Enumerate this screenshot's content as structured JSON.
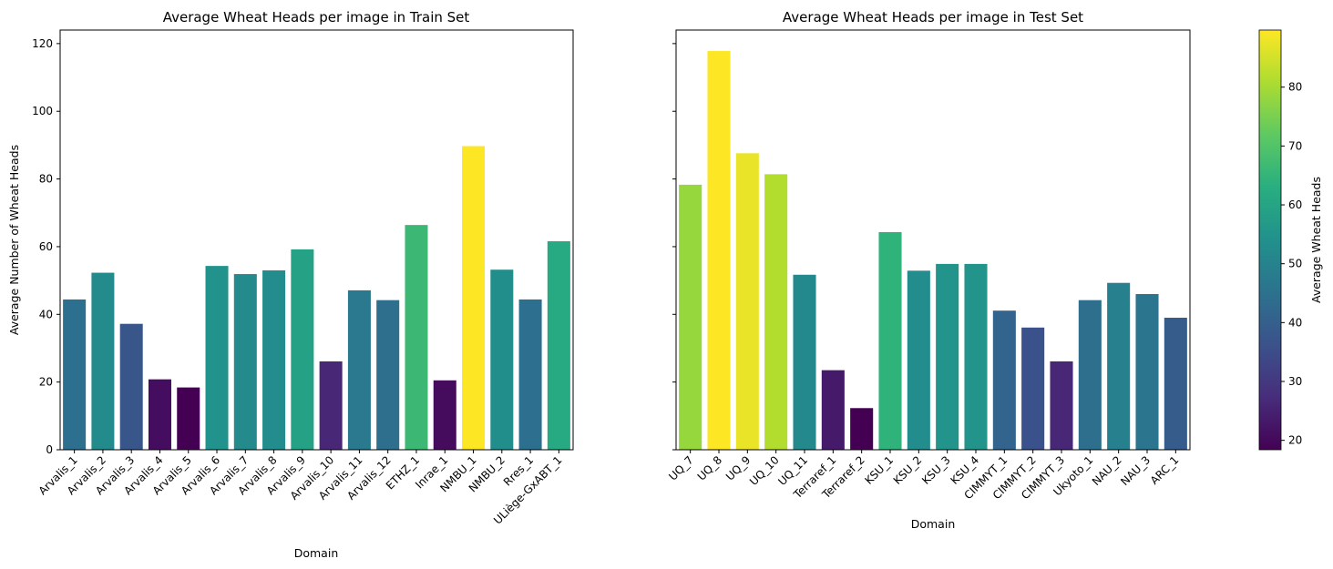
{
  "chart_data": [
    {
      "type": "bar",
      "title": "Average Wheat Heads per image in Train Set",
      "xlabel": "Domain",
      "ylabel": "Average Number of Wheat Heads",
      "ylim": [
        0,
        124
      ],
      "yticks": [
        0,
        20,
        40,
        60,
        80,
        100,
        120
      ],
      "categories": [
        "Arvalis_1",
        "Arvalis_2",
        "Arvalis_3",
        "Arvalis_4",
        "Arvalis_5",
        "Arvalis_6",
        "Arvalis_7",
        "Arvalis_8",
        "Arvalis_9",
        "Arvalis_10",
        "Arvalis_11",
        "Arvalis_12",
        "ETHZ_1",
        "Inrae_1",
        "NMBU_1",
        "NMBU_2",
        "Rres_1",
        "ULiège-GxABT_1"
      ],
      "values": [
        44.4,
        52.3,
        37.2,
        20.8,
        18.4,
        54.3,
        51.9,
        53.0,
        59.2,
        26.1,
        47.1,
        44.2,
        66.4,
        20.5,
        89.7,
        53.2,
        44.4,
        61.6
      ]
    },
    {
      "type": "bar",
      "title": "Average Wheat Heads per image in Test Set",
      "xlabel": "Domain",
      "ylabel": "",
      "ylim": [
        0,
        124
      ],
      "categories": [
        "UQ_7",
        "UQ_8",
        "UQ_9",
        "UQ_10",
        "UQ_11",
        "Terraref_1",
        "Terraref_2",
        "KSU_1",
        "KSU_2",
        "KSU_3",
        "KSU_4",
        "CIMMYT_1",
        "CIMMYT_2",
        "CIMMYT_3",
        "Ukyoto_1",
        "NAU_2",
        "NAU_3",
        "ARC_1"
      ],
      "values": [
        78.3,
        117.8,
        87.6,
        81.4,
        51.7,
        23.5,
        12.3,
        64.3,
        52.9,
        54.9,
        54.9,
        41.1,
        36.1,
        26.1,
        44.2,
        49.3,
        46.0,
        39.0
      ]
    }
  ],
  "colorbar": {
    "label": "Average Wheat Heads",
    "range": [
      18.4,
      89.7
    ],
    "colormap": "viridis",
    "ticks": [
      20,
      30,
      40,
      50,
      60,
      70,
      80
    ]
  }
}
